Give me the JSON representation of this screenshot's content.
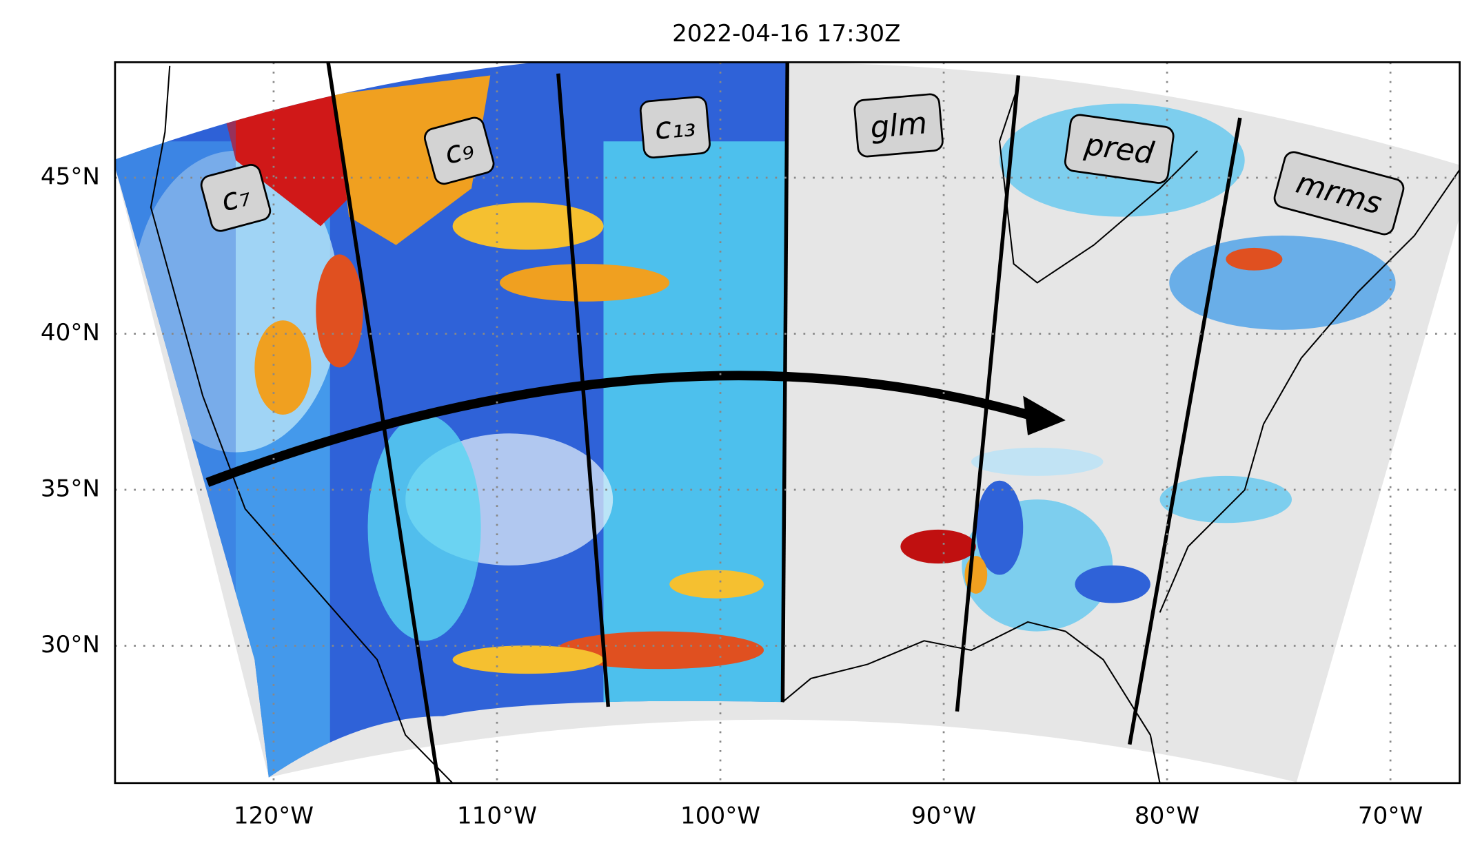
{
  "chart_data": {
    "type": "map",
    "title": "2022-04-16 17:30Z",
    "xlim": [
      -127.1,
      -66.9
    ],
    "ylim": [
      25.6,
      48.7
    ],
    "xticks": [
      {
        "value": -120,
        "label": "120°W"
      },
      {
        "value": -110,
        "label": "110°W"
      },
      {
        "value": -100,
        "label": "100°W"
      },
      {
        "value": -90,
        "label": "90°W"
      },
      {
        "value": -80,
        "label": "80°W"
      },
      {
        "value": -70,
        "label": "70°W"
      }
    ],
    "yticks": [
      {
        "value": 30,
        "label": "30°N"
      },
      {
        "value": 35,
        "label": "35°N"
      },
      {
        "value": 40,
        "label": "40°N"
      },
      {
        "value": 45,
        "label": "45°N"
      }
    ],
    "grid": true,
    "panel_labels": [
      "c₇",
      "c₉",
      "c₁₃",
      "glm",
      "pred",
      "mrms"
    ]
  }
}
